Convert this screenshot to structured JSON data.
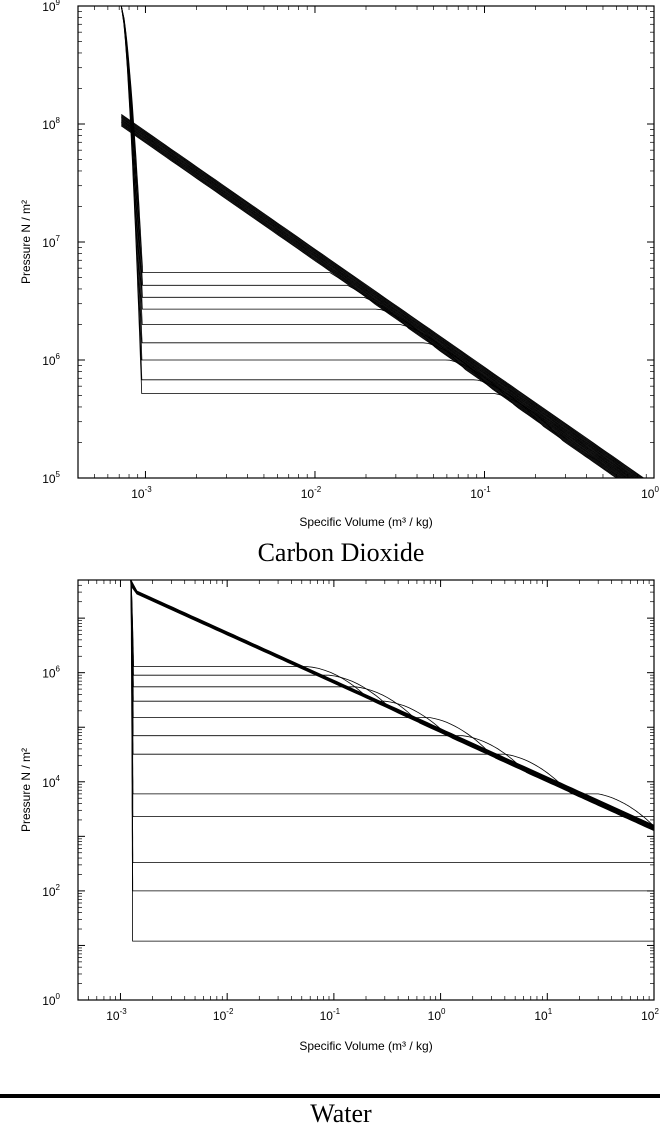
{
  "chart_data": [
    {
      "type": "line",
      "title": "Carbon Dioxide",
      "xlabel": "Specific Volume (m³ / kg)",
      "ylabel": "Pressure N / m²",
      "x_scale": "log",
      "y_scale": "log",
      "xlim": [
        0.0004,
        1
      ],
      "ylim": [
        100000,
        1000000000
      ],
      "x_ticks": [
        {
          "base": "10",
          "exp": "-3",
          "value": 0.001
        },
        {
          "base": "10",
          "exp": "-2",
          "value": 0.01
        },
        {
          "base": "10",
          "exp": "-1",
          "value": 0.1
        },
        {
          "base": "10",
          "exp": "0",
          "value": 1
        }
      ],
      "y_ticks": [
        {
          "base": "10",
          "exp": "5",
          "value": 100000
        },
        {
          "base": "10",
          "exp": "6",
          "value": 1000000
        },
        {
          "base": "10",
          "exp": "7",
          "value": 10000000
        },
        {
          "base": "10",
          "exp": "8",
          "value": 100000000
        },
        {
          "base": "10",
          "exp": "9",
          "value": 1000000000
        }
      ],
      "grid": false,
      "isotherms": {
        "count": 24,
        "liquid_volume": 0.00095,
        "dome_plateau_pressures": [
          520000,
          680000,
          1000000,
          1400000,
          2000000,
          2700000,
          3400000,
          4300000,
          5500000
        ],
        "dome_vapor_volumes": [
          0.072,
          0.055,
          0.038,
          0.027,
          0.019,
          0.013,
          0.009,
          0.0055,
          0.0028
        ],
        "critical_pressure": 7400000,
        "critical_volume": 0.0021,
        "top_pressure": 1000000000,
        "top_volume": 0.00072,
        "ideal_gas_pressure_at_0_1": 600000,
        "ideal_gas_spread": 1.45,
        "ideal_gas_slope": -1
      }
    },
    {
      "type": "line",
      "title": "Water",
      "xlabel": "Specific Volume (m³ / kg)",
      "ylabel": "Pressure N / m²",
      "x_scale": "log",
      "y_scale": "log",
      "xlim": [
        0.0004,
        100
      ],
      "ylim": [
        1,
        50000000
      ],
      "x_ticks": [
        {
          "base": "10",
          "exp": "-3",
          "value": 0.001
        },
        {
          "base": "10",
          "exp": "-2",
          "value": 0.01
        },
        {
          "base": "10",
          "exp": "-1",
          "value": 0.1
        },
        {
          "base": "10",
          "exp": "0",
          "value": 1
        },
        {
          "base": "10",
          "exp": "1",
          "value": 10
        },
        {
          "base": "10",
          "exp": "2",
          "value": 100
        }
      ],
      "y_ticks": [
        {
          "base": "10",
          "exp": "0",
          "value": 1
        },
        {
          "base": "10",
          "exp": "2",
          "value": 100
        },
        {
          "base": "10",
          "exp": "4",
          "value": 10000
        },
        {
          "base": "10",
          "exp": "6",
          "value": 1000000
        }
      ],
      "grid": false,
      "isotherms": {
        "count": 22,
        "liquid_volume": 0.0013,
        "dome_plateau_pressures": [
          12,
          100,
          330,
          2300,
          6000,
          32000,
          70000,
          150000,
          300000,
          550000,
          900000,
          1300000
        ],
        "dome_vapor_volumes": [
          100,
          100,
          100,
          100,
          30,
          4,
          1.6,
          0.8,
          0.3,
          0.16,
          0.09,
          0.055
        ],
        "critical_pressure": 22000000,
        "critical_volume": 0.0031,
        "top_pressure": 50000000,
        "top_volume": 0.00125,
        "ideal_gas_pressure_at_1": 70000,
        "ideal_gas_spread": 1.35,
        "ideal_gas_slope": -0.886
      }
    }
  ]
}
